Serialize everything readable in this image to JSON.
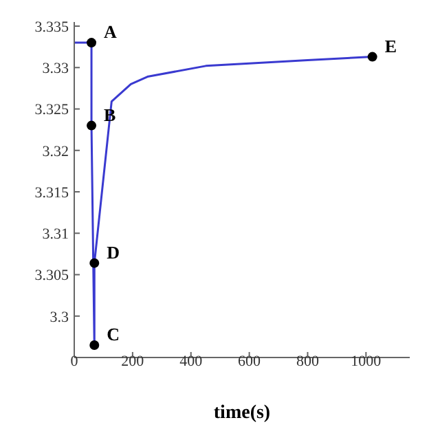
{
  "chart_data": {
    "type": "line",
    "xlabel": "time(s)",
    "xlim": [
      0,
      1150
    ],
    "xticks": [
      0,
      200,
      400,
      600,
      800,
      1000
    ],
    "ylim": [
      3.295,
      3.3355
    ],
    "yticks": [
      3.3,
      3.305,
      3.31,
      3.315,
      3.32,
      3.325,
      3.33,
      3.335
    ],
    "grid": false,
    "line_style": "solid",
    "series": [
      {
        "color": "#3a3ad0",
        "x": [
          0,
          59,
          59,
          69,
          69,
          128,
          194,
          251,
          451,
          600,
          800,
          1022
        ],
        "values": [
          3.333,
          3.333,
          3.323,
          3.2965,
          3.3064,
          3.3259,
          3.328,
          3.3289,
          3.3302,
          3.3305,
          3.3309,
          3.3313
        ]
      },
      {
        "type": "scatter",
        "color": "#000000",
        "x": [
          59,
          59,
          69,
          69,
          1022
        ],
        "values": [
          3.333,
          3.323,
          3.2965,
          3.3064,
          3.3313
        ]
      }
    ],
    "annotations": [
      {
        "text": "A",
        "x": 59,
        "y": 3.333
      },
      {
        "text": "B",
        "x": 59,
        "y": 3.323
      },
      {
        "text": "C",
        "x": 69,
        "y": 3.2965
      },
      {
        "text": "D",
        "x": 69,
        "y": 3.3064
      },
      {
        "text": "E",
        "x": 1022,
        "y": 3.3313
      }
    ]
  }
}
